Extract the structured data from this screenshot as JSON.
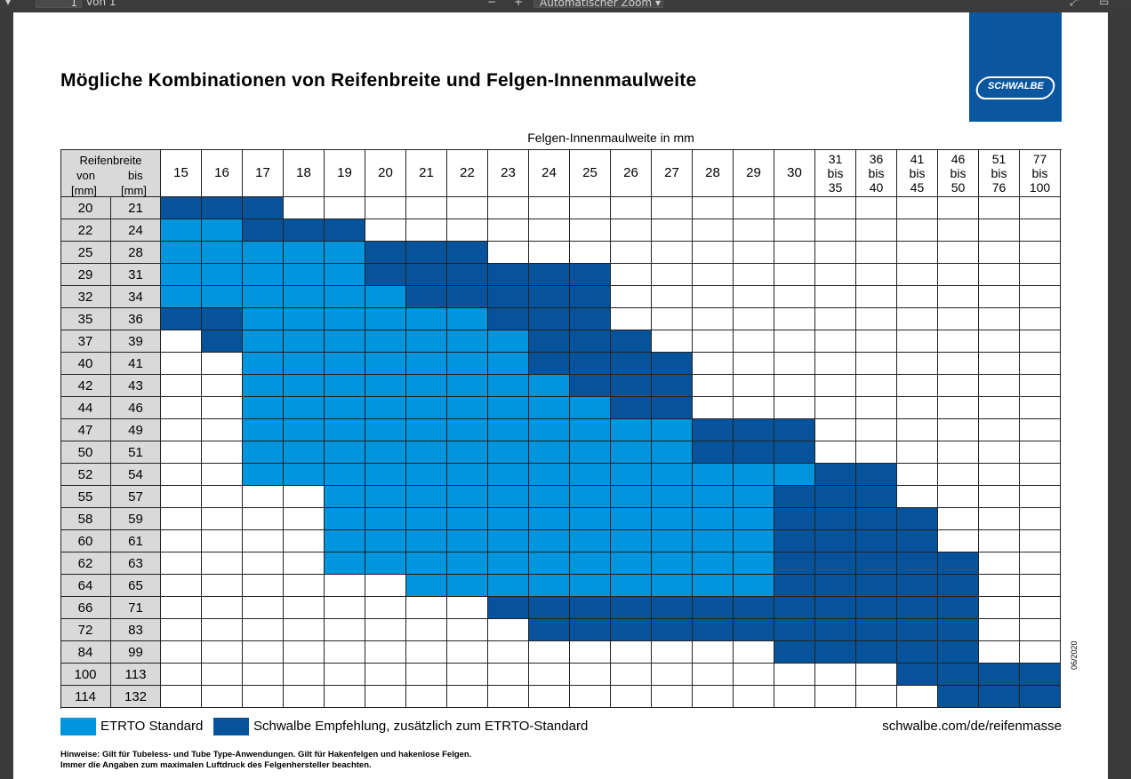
{
  "viewer": {
    "page_input": "1",
    "page_of": "von 1",
    "zoom": "Automatischer Zoom"
  },
  "brand": {
    "name": "SCHWALBE",
    "color": "#0a57a0"
  },
  "title": "Mögliche Kombinationen von Reifenbreite und Felgen-Innenmaulweite",
  "rim_header": "Felgen-Innenmaulweite in mm",
  "tire_header": {
    "title": "Reifenbreite",
    "from": "von",
    "to": "bis",
    "unit": "[mm]"
  },
  "colors": {
    "etrto": "#0095dc",
    "schwalbe": "#06539b",
    "header_bg": "#d9d9d9"
  },
  "rim_columns": [
    [
      "15"
    ],
    [
      "16"
    ],
    [
      "17"
    ],
    [
      "18"
    ],
    [
      "19"
    ],
    [
      "20"
    ],
    [
      "21"
    ],
    [
      "22"
    ],
    [
      "23"
    ],
    [
      "24"
    ],
    [
      "25"
    ],
    [
      "26"
    ],
    [
      "27"
    ],
    [
      "28"
    ],
    [
      "29"
    ],
    [
      "30"
    ],
    [
      "31",
      "bis",
      "35"
    ],
    [
      "36",
      "bis",
      "40"
    ],
    [
      "41",
      "bis",
      "45"
    ],
    [
      "46",
      "bis",
      "50"
    ],
    [
      "51",
      "bis",
      "76"
    ],
    [
      "77",
      "bis",
      "100"
    ]
  ],
  "rows": [
    {
      "from": "20",
      "to": "21",
      "cells": "SSS..................."
    },
    {
      "from": "22",
      "to": "24",
      "cells": "EESSS................."
    },
    {
      "from": "25",
      "to": "28",
      "cells": "EEEEESSS.............."
    },
    {
      "from": "29",
      "to": "31",
      "cells": "EEEEESSSSSS..........."
    },
    {
      "from": "32",
      "to": "34",
      "cells": "EEEEEESSSSS..........."
    },
    {
      "from": "35",
      "to": "36",
      "cells": "SSEEEEEESSS..........."
    },
    {
      "from": "37",
      "to": "39",
      "cells": ".SEEEEEEESSS.........."
    },
    {
      "from": "40",
      "to": "41",
      "cells": "..EEEEEEESSSS........."
    },
    {
      "from": "42",
      "to": "43",
      "cells": "..EEEEEEEESSS........."
    },
    {
      "from": "44",
      "to": "46",
      "cells": "..EEEEEEEEESS........."
    },
    {
      "from": "47",
      "to": "49",
      "cells": "..EEEEEEEEEEESSS......"
    },
    {
      "from": "50",
      "to": "51",
      "cells": "..EEEEEEEEEEESSS......"
    },
    {
      "from": "52",
      "to": "54",
      "cells": "..EEEEEEEEEEEEEESS...."
    },
    {
      "from": "55",
      "to": "57",
      "cells": "....EEEEEEEEEEESSS...."
    },
    {
      "from": "58",
      "to": "59",
      "cells": "....EEEEEEEEEEESSSS..."
    },
    {
      "from": "60",
      "to": "61",
      "cells": "....EEEEEEEEEEESSSS..."
    },
    {
      "from": "62",
      "to": "63",
      "cells": "....EEEEEEEEEEESSSSS.."
    },
    {
      "from": "64",
      "to": "65",
      "cells": "......EEEEEEEEESSSSS.."
    },
    {
      "from": "66",
      "to": "71",
      "cells": "........SSSSSSSSSSSS.."
    },
    {
      "from": "72",
      "to": "83",
      "cells": ".........SSSSSSSSSSS.."
    },
    {
      "from": "84",
      "to": "99",
      "cells": "...............SSSSS.."
    },
    {
      "from": "100",
      "to": "113",
      "cells": "..................SSSS"
    },
    {
      "from": "114",
      "to": "132",
      "cells": "...................SSS"
    }
  ],
  "legend": {
    "etrto": "ETRTO Standard",
    "schwalbe": "Schwalbe Empfehlung, zusätzlich zum ETRTO-Standard"
  },
  "url": "schwalbe.com/de/reifenmasse",
  "date_code": "06/2020",
  "notes": [
    "Hinweise: Gilt für Tubeless- und Tube Type-Anwendungen. Gilt für Hakenfelgen und hakenlose Felgen.",
    "Immer die Angaben zum maximalen Luftdruck des Felgenhersteller beachten."
  ]
}
